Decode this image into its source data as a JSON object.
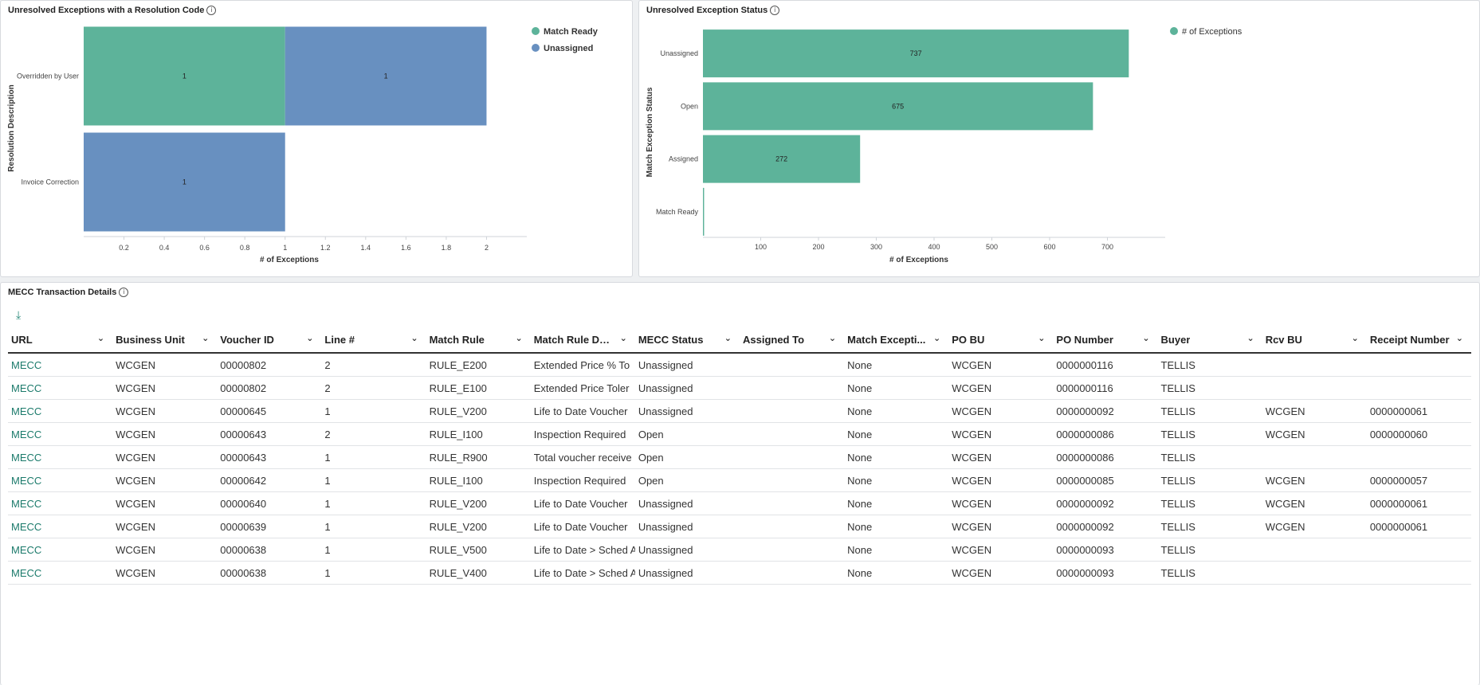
{
  "colors": {
    "green": "#5db39a",
    "blue": "#6890c0",
    "link": "#1b7a6b"
  },
  "panel1": {
    "title": "Unresolved Exceptions with a Resolution Code",
    "chart_data": {
      "type": "bar",
      "orientation": "horizontal-stacked",
      "title": "Unresolved Exceptions with a Resolution Code",
      "xlabel": "# of Exceptions",
      "ylabel": "Resolution Description",
      "categories": [
        "Overridden by User",
        "Invoice Correction"
      ],
      "series": [
        {
          "name": "Match Ready",
          "values": [
            1,
            0
          ]
        },
        {
          "name": "Unassigned",
          "values": [
            1,
            1
          ]
        }
      ],
      "data_labels": [
        [
          "1",
          "1"
        ],
        [
          "",
          "1"
        ]
      ],
      "xlim": [
        0,
        2.2
      ],
      "xticks": [
        "0.2",
        "0.4",
        "0.6",
        "0.8",
        "1",
        "1.2",
        "1.4",
        "1.6",
        "1.8",
        "2"
      ],
      "legend": "top-right"
    }
  },
  "panel2": {
    "title": "Unresolved Exception Status",
    "chart_data": {
      "type": "bar",
      "orientation": "horizontal",
      "title": "Unresolved Exception Status",
      "xlabel": "# of Exceptions",
      "ylabel": "Match Exception Status",
      "categories": [
        "Unassigned",
        "Open",
        "Assigned",
        "Match Ready"
      ],
      "series": [
        {
          "name": "# of Exceptions",
          "values": [
            737,
            675,
            272,
            2
          ]
        }
      ],
      "data_labels": [
        "737",
        "675",
        "272",
        ""
      ],
      "xlim": [
        0,
        800
      ],
      "xticks": [
        "100",
        "200",
        "300",
        "400",
        "500",
        "600",
        "700"
      ],
      "legend": "top-right"
    }
  },
  "table": {
    "title": "MECC Transaction Details",
    "columns": [
      "URL",
      "Business Unit",
      "Voucher ID",
      "Line #",
      "Match Rule",
      "Match Rule De...",
      "MECC Status",
      "Assigned To",
      "Match Excepti...",
      "PO BU",
      "PO Number",
      "Buyer",
      "Rcv BU",
      "Receipt Number"
    ],
    "rows": [
      [
        "MECC",
        "WCGEN",
        "00000802",
        "2",
        "RULE_E200",
        "Extended Price % To",
        "Unassigned",
        "",
        "None",
        "WCGEN",
        "0000000116",
        "TELLIS",
        "",
        ""
      ],
      [
        "MECC",
        "WCGEN",
        "00000802",
        "2",
        "RULE_E100",
        "Extended Price Toler",
        "Unassigned",
        "",
        "None",
        "WCGEN",
        "0000000116",
        "TELLIS",
        "",
        ""
      ],
      [
        "MECC",
        "WCGEN",
        "00000645",
        "1",
        "RULE_V200",
        "Life to Date Voucher",
        "Unassigned",
        "",
        "None",
        "WCGEN",
        "0000000092",
        "TELLIS",
        "WCGEN",
        "0000000061"
      ],
      [
        "MECC",
        "WCGEN",
        "00000643",
        "2",
        "RULE_I100",
        "Inspection Required",
        "Open",
        "",
        "None",
        "WCGEN",
        "0000000086",
        "TELLIS",
        "WCGEN",
        "0000000060"
      ],
      [
        "MECC",
        "WCGEN",
        "00000643",
        "1",
        "RULE_R900",
        "Total voucher receive",
        "Open",
        "",
        "None",
        "WCGEN",
        "0000000086",
        "TELLIS",
        "",
        ""
      ],
      [
        "MECC",
        "WCGEN",
        "00000642",
        "1",
        "RULE_I100",
        "Inspection Required",
        "Open",
        "",
        "None",
        "WCGEN",
        "0000000085",
        "TELLIS",
        "WCGEN",
        "0000000057"
      ],
      [
        "MECC",
        "WCGEN",
        "00000640",
        "1",
        "RULE_V200",
        "Life to Date Voucher",
        "Unassigned",
        "",
        "None",
        "WCGEN",
        "0000000092",
        "TELLIS",
        "WCGEN",
        "0000000061"
      ],
      [
        "MECC",
        "WCGEN",
        "00000639",
        "1",
        "RULE_V200",
        "Life to Date Voucher",
        "Unassigned",
        "",
        "None",
        "WCGEN",
        "0000000092",
        "TELLIS",
        "WCGEN",
        "0000000061"
      ],
      [
        "MECC",
        "WCGEN",
        "00000638",
        "1",
        "RULE_V500",
        "Life to Date > Sched A",
        "Unassigned",
        "",
        "None",
        "WCGEN",
        "0000000093",
        "TELLIS",
        "",
        ""
      ],
      [
        "MECC",
        "WCGEN",
        "00000638",
        "1",
        "RULE_V400",
        "Life to Date > Sched A",
        "Unassigned",
        "",
        "None",
        "WCGEN",
        "0000000093",
        "TELLIS",
        "",
        ""
      ]
    ]
  }
}
